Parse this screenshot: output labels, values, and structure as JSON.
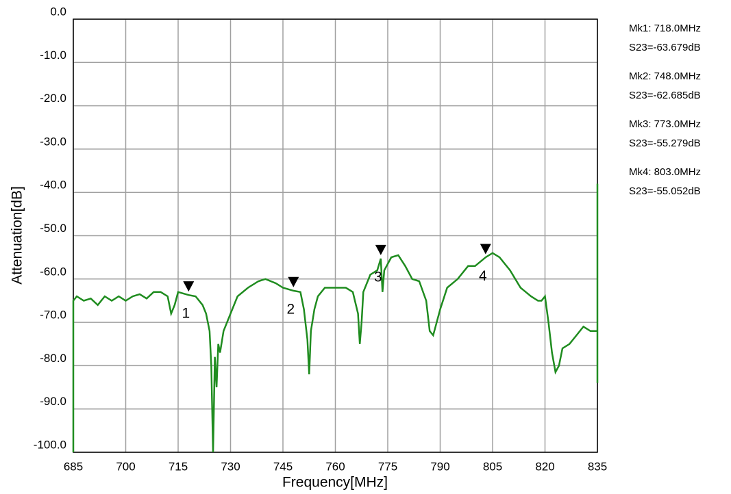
{
  "chart_data": {
    "type": "line",
    "x_label": "Frequency[MHz]",
    "y_label": "Attenuation[dB]",
    "color": "#1f8c1f",
    "grid": true,
    "xlim": [
      685,
      835
    ],
    "xticks": [
      685,
      700,
      715,
      730,
      745,
      760,
      775,
      790,
      805,
      820,
      835
    ],
    "ylim": [
      -100,
      0
    ],
    "yticks": [
      {
        "value": 0,
        "label": "0.0"
      },
      {
        "value": -10,
        "label": "-10.0"
      },
      {
        "value": -20,
        "label": "-20.0"
      },
      {
        "value": -30,
        "label": "-30.0"
      },
      {
        "value": -40,
        "label": "-40.0"
      },
      {
        "value": -50,
        "label": "-50.0"
      },
      {
        "value": -60,
        "label": "-60.0"
      },
      {
        "value": -70,
        "label": "-70.0"
      },
      {
        "value": -80,
        "label": "-80.0"
      },
      {
        "value": -90,
        "label": "-90.0"
      },
      {
        "value": -100,
        "label": "-100.0"
      }
    ],
    "x": [
      685,
      685,
      686,
      688,
      690,
      692,
      694,
      696,
      698,
      700,
      702,
      704,
      706,
      708,
      710,
      712,
      713,
      714,
      715,
      718,
      720,
      722,
      723,
      724,
      724.5,
      725,
      725.5,
      726,
      726.5,
      727,
      728,
      730,
      732,
      735,
      738,
      740,
      743,
      745,
      748,
      750,
      751,
      752,
      752.5,
      753,
      754,
      755,
      757,
      760,
      763,
      765,
      766.5,
      767,
      767.5,
      768,
      770,
      772,
      773,
      773.5,
      774,
      776,
      778,
      780,
      782,
      784,
      786,
      787,
      788,
      789,
      790,
      792,
      795,
      798,
      800,
      803,
      805,
      807,
      810,
      813,
      816,
      818,
      819,
      820,
      821,
      822,
      823,
      824,
      825,
      827,
      829,
      831,
      833,
      835,
      835,
      835
    ],
    "values": [
      -100,
      -65,
      -64,
      -65,
      -64.5,
      -66,
      -64,
      -65,
      -64,
      -65,
      -64,
      -63.5,
      -64.5,
      -63,
      -63,
      -64,
      -68,
      -66,
      -63,
      -63.7,
      -64,
      -66,
      -68,
      -72,
      -80,
      -100,
      -78,
      -85,
      -75,
      -77,
      -72,
      -68,
      -64,
      -62,
      -60.5,
      -60,
      -61,
      -62,
      -62.7,
      -63,
      -67,
      -74,
      -82,
      -72,
      -67,
      -64,
      -62,
      -62,
      -62,
      -63,
      -68,
      -75,
      -70,
      -63,
      -59,
      -58,
      -55.3,
      -63,
      -58,
      -55,
      -54.5,
      -57,
      -60,
      -60.5,
      -65,
      -72,
      -73,
      -70,
      -67,
      -62,
      -60,
      -57,
      -57,
      -55,
      -54,
      -55,
      -58,
      -62,
      -64,
      -65,
      -65,
      -64,
      -70,
      -77,
      -81.5,
      -80,
      -76,
      -75,
      -73,
      -71,
      -72,
      -72,
      -84,
      -38
    ],
    "markers": [
      {
        "label": "1",
        "x": 718,
        "y": -63.679,
        "frequency_label": "Mk1:  718.0MHz",
        "value_label": "S23=-63.679dB"
      },
      {
        "label": "2",
        "x": 748,
        "y": -62.685,
        "frequency_label": "Mk2:  748.0MHz",
        "value_label": "S23=-62.685dB"
      },
      {
        "label": "3",
        "x": 773,
        "y": -55.279,
        "frequency_label": "Mk3:  773.0MHz",
        "value_label": "S23=-55.279dB"
      },
      {
        "label": "4",
        "x": 803,
        "y": -55.052,
        "frequency_label": "Mk4:  803.0MHz",
        "value_label": "S23=-55.052dB"
      }
    ]
  }
}
